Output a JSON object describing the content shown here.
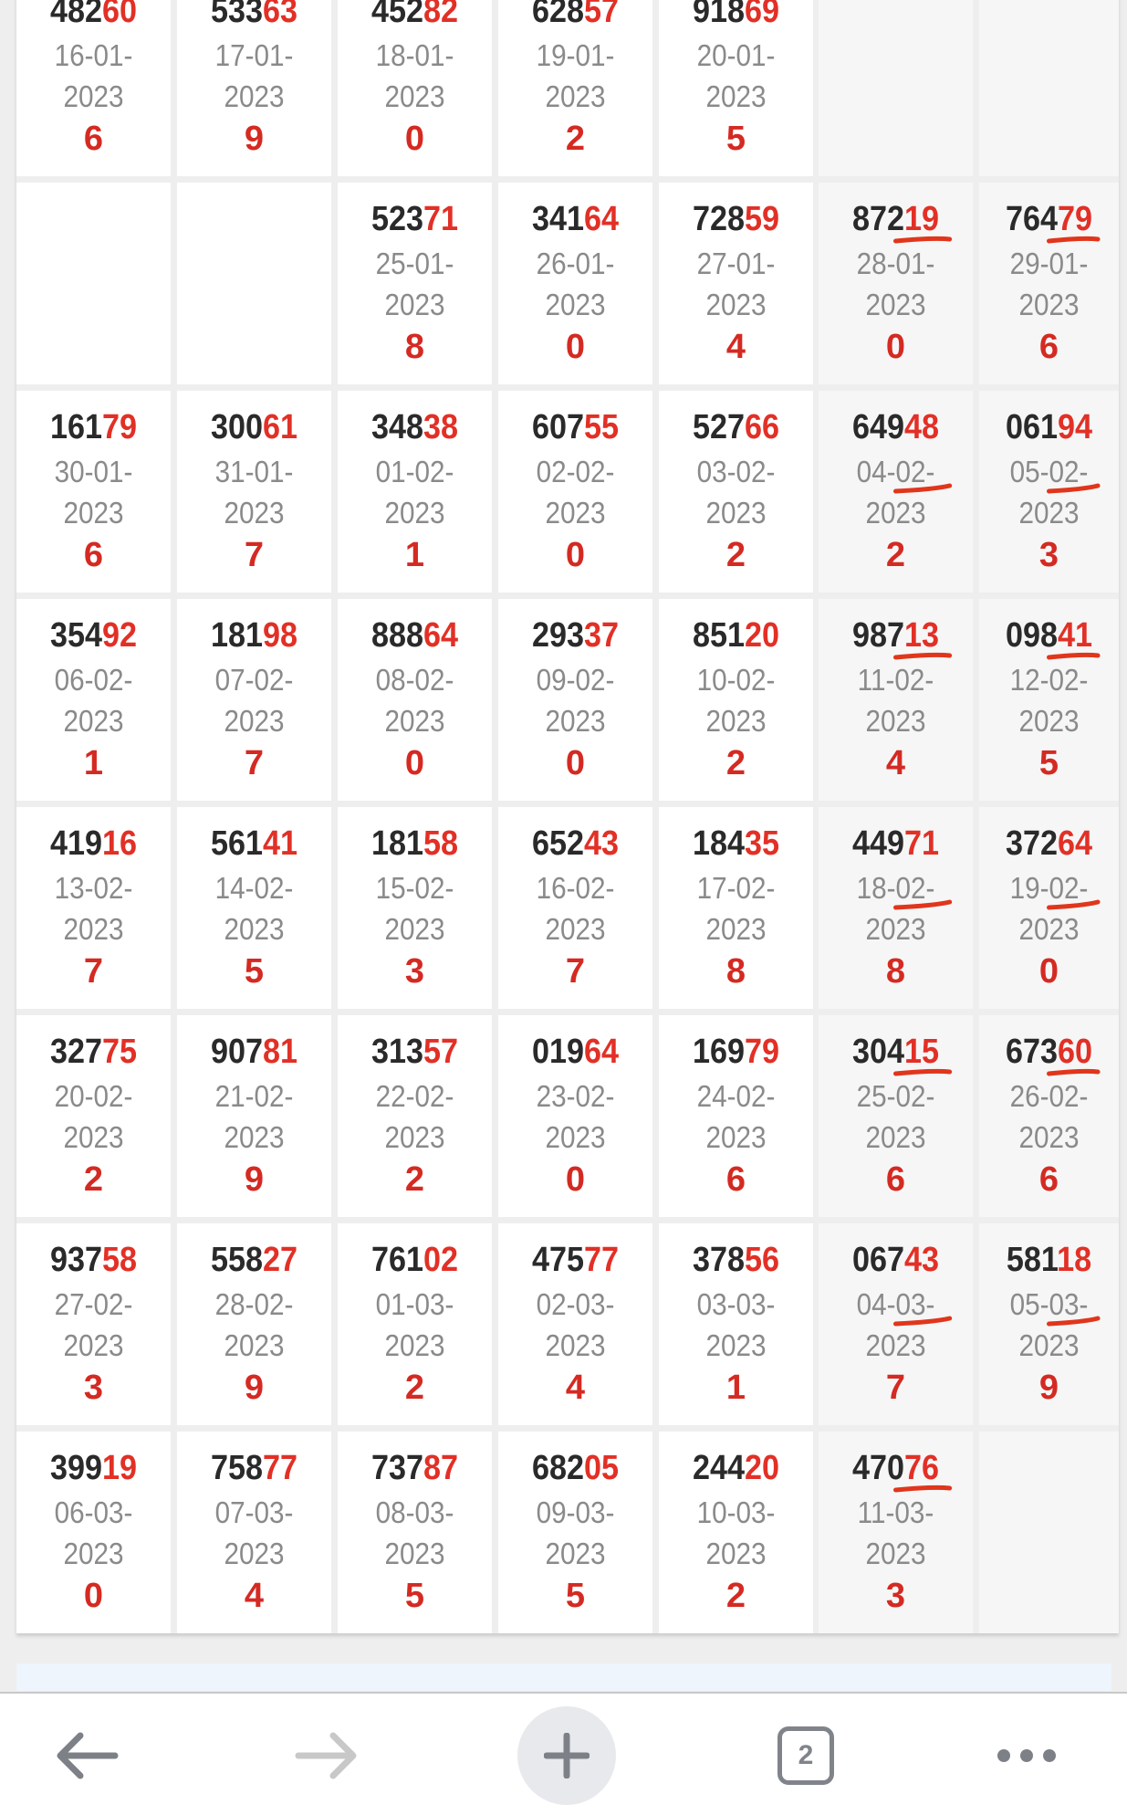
{
  "colors": {
    "accent_red": "#e23026",
    "dark": "#2a2a2a",
    "date_grey": "#8a8a8a",
    "annotation": "#e0361c"
  },
  "rows": [
    [
      {
        "head": "482",
        "tail": "60",
        "date1": "16-01-",
        "date2": "2023",
        "result": "6"
      },
      {
        "head": "533",
        "tail": "63",
        "date1": "17-01-",
        "date2": "2023",
        "result": "9"
      },
      {
        "head": "452",
        "tail": "82",
        "date1": "18-01-",
        "date2": "2023",
        "result": "0"
      },
      {
        "head": "628",
        "tail": "57",
        "date1": "19-01-",
        "date2": "2023",
        "result": "2"
      },
      {
        "head": "918",
        "tail": "69",
        "date1": "20-01-",
        "date2": "2023",
        "result": "5"
      },
      null,
      null
    ],
    [
      null,
      null,
      {
        "head": "523",
        "tail": "71",
        "date1": "25-01-",
        "date2": "2023",
        "result": "8"
      },
      {
        "head": "341",
        "tail": "64",
        "date1": "26-01-",
        "date2": "2023",
        "result": "0"
      },
      {
        "head": "728",
        "tail": "59",
        "date1": "27-01-",
        "date2": "2023",
        "result": "4"
      },
      {
        "head": "872",
        "tail": "19",
        "date1": "28-01-",
        "date2": "2023",
        "result": "0",
        "marked": true
      },
      {
        "head": "764",
        "tail": "79",
        "date1": "29-01-",
        "date2": "2023",
        "result": "6",
        "marked": true
      }
    ],
    [
      {
        "head": "161",
        "tail": "79",
        "date1": "30-01-",
        "date2": "2023",
        "result": "6"
      },
      {
        "head": "300",
        "tail": "61",
        "date1": "31-01-",
        "date2": "2023",
        "result": "7"
      },
      {
        "head": "348",
        "tail": "38",
        "date1": "01-02-",
        "date2": "2023",
        "result": "1"
      },
      {
        "head": "607",
        "tail": "55",
        "date1": "02-02-",
        "date2": "2023",
        "result": "0"
      },
      {
        "head": "527",
        "tail": "66",
        "date1": "03-02-",
        "date2": "2023",
        "result": "2"
      },
      {
        "head": "649",
        "tail": "48",
        "date1": "04-02-",
        "date2": "2023",
        "result": "2",
        "marked": true
      },
      {
        "head": "061",
        "tail": "94",
        "date1": "05-02-",
        "date2": "2023",
        "result": "3",
        "marked": true
      }
    ],
    [
      {
        "head": "354",
        "tail": "92",
        "date1": "06-02-",
        "date2": "2023",
        "result": "1"
      },
      {
        "head": "181",
        "tail": "98",
        "date1": "07-02-",
        "date2": "2023",
        "result": "7"
      },
      {
        "head": "888",
        "tail": "64",
        "date1": "08-02-",
        "date2": "2023",
        "result": "0"
      },
      {
        "head": "293",
        "tail": "37",
        "date1": "09-02-",
        "date2": "2023",
        "result": "0"
      },
      {
        "head": "851",
        "tail": "20",
        "date1": "10-02-",
        "date2": "2023",
        "result": "2"
      },
      {
        "head": "987",
        "tail": "13",
        "date1": "11-02-",
        "date2": "2023",
        "result": "4",
        "marked": true
      },
      {
        "head": "098",
        "tail": "41",
        "date1": "12-02-",
        "date2": "2023",
        "result": "5",
        "marked": true
      }
    ],
    [
      {
        "head": "419",
        "tail": "16",
        "date1": "13-02-",
        "date2": "2023",
        "result": "7"
      },
      {
        "head": "561",
        "tail": "41",
        "date1": "14-02-",
        "date2": "2023",
        "result": "5"
      },
      {
        "head": "181",
        "tail": "58",
        "date1": "15-02-",
        "date2": "2023",
        "result": "3"
      },
      {
        "head": "652",
        "tail": "43",
        "date1": "16-02-",
        "date2": "2023",
        "result": "7"
      },
      {
        "head": "184",
        "tail": "35",
        "date1": "17-02-",
        "date2": "2023",
        "result": "8"
      },
      {
        "head": "449",
        "tail": "71",
        "date1": "18-02-",
        "date2": "2023",
        "result": "8",
        "marked": true
      },
      {
        "head": "372",
        "tail": "64",
        "date1": "19-02-",
        "date2": "2023",
        "result": "0",
        "marked": true
      }
    ],
    [
      {
        "head": "327",
        "tail": "75",
        "date1": "20-02-",
        "date2": "2023",
        "result": "2"
      },
      {
        "head": "907",
        "tail": "81",
        "date1": "21-02-",
        "date2": "2023",
        "result": "9"
      },
      {
        "head": "313",
        "tail": "57",
        "date1": "22-02-",
        "date2": "2023",
        "result": "2"
      },
      {
        "head": "019",
        "tail": "64",
        "date1": "23-02-",
        "date2": "2023",
        "result": "0"
      },
      {
        "head": "169",
        "tail": "79",
        "date1": "24-02-",
        "date2": "2023",
        "result": "6"
      },
      {
        "head": "304",
        "tail": "15",
        "date1": "25-02-",
        "date2": "2023",
        "result": "6",
        "marked": true
      },
      {
        "head": "673",
        "tail": "60",
        "date1": "26-02-",
        "date2": "2023",
        "result": "6",
        "marked": true
      }
    ],
    [
      {
        "head": "937",
        "tail": "58",
        "date1": "27-02-",
        "date2": "2023",
        "result": "3"
      },
      {
        "head": "558",
        "tail": "27",
        "date1": "28-02-",
        "date2": "2023",
        "result": "9"
      },
      {
        "head": "761",
        "tail": "02",
        "date1": "01-03-",
        "date2": "2023",
        "result": "2"
      },
      {
        "head": "475",
        "tail": "77",
        "date1": "02-03-",
        "date2": "2023",
        "result": "4"
      },
      {
        "head": "378",
        "tail": "56",
        "date1": "03-03-",
        "date2": "2023",
        "result": "1"
      },
      {
        "head": "067",
        "tail": "43",
        "date1": "04-03-",
        "date2": "2023",
        "result": "7",
        "marked": true
      },
      {
        "head": "581",
        "tail": "18",
        "date1": "05-03-",
        "date2": "2023",
        "result": "9",
        "marked": true
      }
    ],
    [
      {
        "head": "399",
        "tail": "19",
        "date1": "06-03-",
        "date2": "2023",
        "result": "0"
      },
      {
        "head": "758",
        "tail": "77",
        "date1": "07-03-",
        "date2": "2023",
        "result": "4"
      },
      {
        "head": "737",
        "tail": "87",
        "date1": "08-03-",
        "date2": "2023",
        "result": "5"
      },
      {
        "head": "682",
        "tail": "05",
        "date1": "09-03-",
        "date2": "2023",
        "result": "5"
      },
      {
        "head": "244",
        "tail": "20",
        "date1": "10-03-",
        "date2": "2023",
        "result": "2"
      },
      {
        "head": "470",
        "tail": "76",
        "date1": "11-03-",
        "date2": "2023",
        "result": "3",
        "marked": true
      },
      null
    ]
  ],
  "nav": {
    "back_icon": "arrow-left-icon",
    "forward_icon": "arrow-right-icon",
    "new_tab_icon": "plus-icon",
    "tab_count": "2",
    "menu_icon": "more-dots-icon"
  }
}
